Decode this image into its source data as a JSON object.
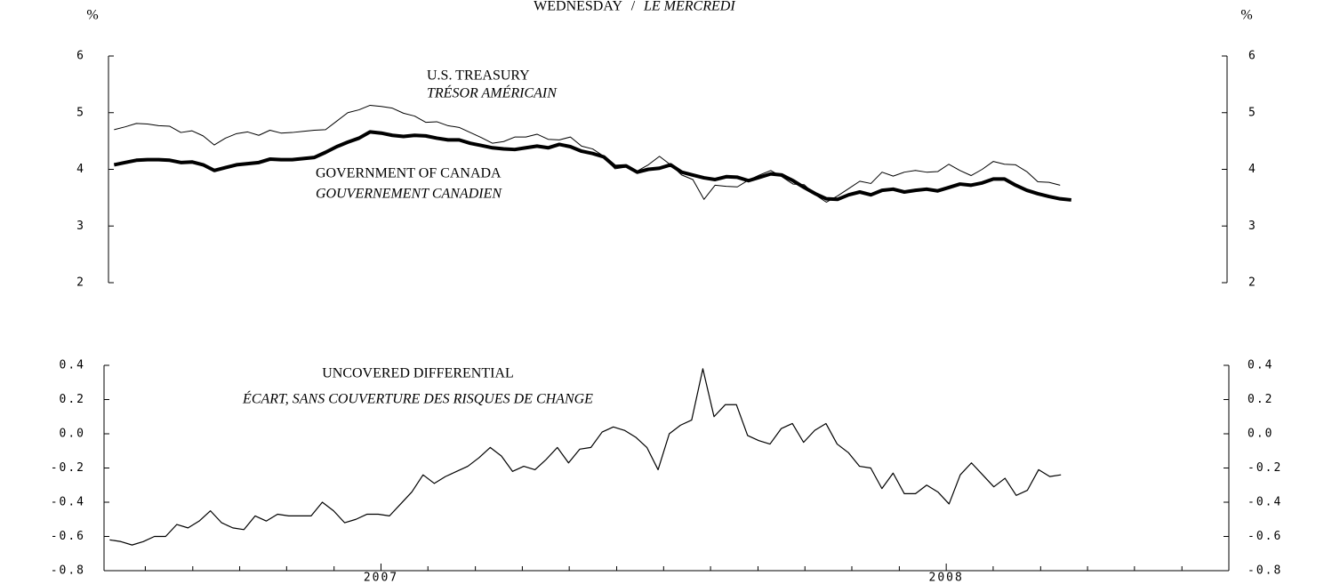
{
  "header": {
    "title": "WEDNESDAY",
    "title_separator": "/",
    "title_fr": "LE MERCREDI",
    "unit": "%"
  },
  "chart_data": [
    {
      "type": "line",
      "x": [
        2006.52,
        2006.5398,
        2006.5596,
        2006.5794,
        2006.5992,
        2006.619,
        2006.6388,
        2006.6586,
        2006.6784,
        2006.6982,
        2006.718,
        2006.7378,
        2006.7576,
        2006.7774,
        2006.7972,
        2006.817,
        2006.8368,
        2006.8566,
        2006.8764,
        2006.8962,
        2006.916,
        2006.9358,
        2006.9556,
        2006.9754,
        2006.9952,
        2007.015,
        2007.0348,
        2007.0546,
        2007.0744,
        2007.0942,
        2007.114,
        2007.1338,
        2007.1536,
        2007.1734,
        2007.1932,
        2007.213,
        2007.2328,
        2007.2526,
        2007.2724,
        2007.2922,
        2007.312,
        2007.3318,
        2007.3516,
        2007.3714,
        2007.3912,
        2007.411,
        2007.4308,
        2007.4506,
        2007.4704,
        2007.4902,
        2007.51,
        2007.5298,
        2007.5496,
        2007.5694,
        2007.5892,
        2007.609,
        2007.6288,
        2007.6486,
        2007.6684,
        2007.6882,
        2007.708,
        2007.7278,
        2007.7476,
        2007.7674,
        2007.7872,
        2007.807,
        2007.8268,
        2007.8466,
        2007.8664,
        2007.8862,
        2007.906,
        2007.9258,
        2007.9456,
        2007.9654,
        2007.9852,
        2008.005,
        2008.0248,
        2008.0446,
        2008.0644,
        2008.0842,
        2008.104,
        2008.1238,
        2008.1436,
        2008.1634,
        2008.1832,
        2008.203,
        2008.2228
      ],
      "xlim": [
        2006.51,
        2008.5
      ],
      "ylim": [
        2,
        6
      ],
      "yticks": [
        2,
        3,
        4,
        5,
        6
      ],
      "y2lim": [
        2,
        6
      ],
      "y2ticks": [
        2,
        3,
        4,
        5,
        6
      ],
      "series": [
        {
          "name": "U.S. TREASURY",
          "name_fr": "TRÉSOR AMÉRICAIN",
          "color": "#000000",
          "values": [
            4.7,
            4.75,
            4.81,
            4.8,
            4.77,
            4.76,
            4.65,
            4.68,
            4.59,
            4.43,
            4.55,
            4.63,
            4.66,
            4.6,
            4.69,
            4.64,
            4.65,
            4.67,
            4.69,
            4.7,
            4.85,
            5.0,
            5.05,
            5.13,
            5.11,
            5.08,
            4.99,
            4.94,
            4.83,
            4.84,
            4.77,
            4.74,
            4.65,
            4.56,
            4.46,
            4.49,
            4.57,
            4.57,
            4.62,
            4.53,
            4.52,
            4.57,
            4.41,
            4.36,
            4.23,
            4.01,
            4.04,
            3.97,
            4.08,
            4.23,
            4.08,
            3.9,
            3.82,
            3.47,
            3.72,
            3.7,
            3.69,
            3.81,
            3.9,
            3.98,
            3.87,
            3.74,
            3.73,
            3.55,
            3.42,
            3.53,
            3.66,
            3.79,
            3.75,
            3.95,
            3.88,
            3.95,
            3.98,
            3.95,
            3.96,
            4.09,
            3.98,
            3.89,
            4.0,
            4.14,
            4.09,
            4.08,
            3.96,
            3.78,
            3.77,
            3.72,
            null
          ]
        },
        {
          "name": "GOVERNMENT OF CANADA",
          "name_fr": "GOUVERNEMENT CANADIEN",
          "color": "#000000",
          "values": [
            4.08,
            4.12,
            4.16,
            4.17,
            4.17,
            4.16,
            4.12,
            4.13,
            4.08,
            3.98,
            4.03,
            4.08,
            4.1,
            4.12,
            4.18,
            4.17,
            4.17,
            4.19,
            4.21,
            4.3,
            4.4,
            4.48,
            4.55,
            4.66,
            4.64,
            4.6,
            4.58,
            4.6,
            4.59,
            4.55,
            4.52,
            4.52,
            4.46,
            4.42,
            4.38,
            4.36,
            4.35,
            4.38,
            4.41,
            4.38,
            4.44,
            4.4,
            4.32,
            4.28,
            4.22,
            4.05,
            4.06,
            3.95,
            4.0,
            4.02,
            4.08,
            3.95,
            3.9,
            3.85,
            3.82,
            3.87,
            3.86,
            3.8,
            3.86,
            3.92,
            3.9,
            3.8,
            3.68,
            3.57,
            3.48,
            3.47,
            3.55,
            3.6,
            3.55,
            3.63,
            3.65,
            3.6,
            3.63,
            3.65,
            3.62,
            3.68,
            3.74,
            3.72,
            3.76,
            3.83,
            3.83,
            3.72,
            3.63,
            3.57,
            3.52,
            3.48,
            3.46
          ]
        }
      ]
    },
    {
      "type": "line",
      "x": [
        2006.52,
        2006.5398,
        2006.5596,
        2006.5794,
        2006.5992,
        2006.619,
        2006.6388,
        2006.6586,
        2006.6784,
        2006.6982,
        2006.718,
        2006.7378,
        2006.7576,
        2006.7774,
        2006.7972,
        2006.817,
        2006.8368,
        2006.8566,
        2006.8764,
        2006.8962,
        2006.916,
        2006.9358,
        2006.9556,
        2006.9754,
        2006.9952,
        2007.015,
        2007.0348,
        2007.0546,
        2007.0744,
        2007.0942,
        2007.114,
        2007.1338,
        2007.1536,
        2007.1734,
        2007.1932,
        2007.213,
        2007.2328,
        2007.2526,
        2007.2724,
        2007.2922,
        2007.312,
        2007.3318,
        2007.3516,
        2007.3714,
        2007.3912,
        2007.411,
        2007.4308,
        2007.4506,
        2007.4704,
        2007.4902,
        2007.51,
        2007.5298,
        2007.5496,
        2007.5694,
        2007.5892,
        2007.609,
        2007.6288,
        2007.6486,
        2007.6684,
        2007.6882,
        2007.708,
        2007.7278,
        2007.7476,
        2007.7674,
        2007.7872,
        2007.807,
        2007.8268,
        2007.8466,
        2007.8664,
        2007.8862,
        2007.906,
        2007.9258,
        2007.9456,
        2007.9654,
        2007.9852,
        2008.005,
        2008.0248,
        2008.0446,
        2008.0644,
        2008.0842,
        2008.104,
        2008.1238,
        2008.1436,
        2008.1634,
        2008.1832,
        2008.203
      ],
      "xlim": [
        2006.51,
        2008.5
      ],
      "xticks": [
        2007,
        2008
      ],
      "xminorticks": [
        2006.583,
        2006.667,
        2006.75,
        2006.833,
        2006.917,
        2007.083,
        2007.167,
        2007.25,
        2007.333,
        2007.417,
        2007.5,
        2007.583,
        2007.667,
        2007.75,
        2007.833,
        2007.917,
        2008.083,
        2008.167,
        2008.25,
        2008.333,
        2008.417
      ],
      "ylim": [
        -0.8,
        0.4
      ],
      "yticks": [
        -0.8,
        -0.6,
        -0.4,
        -0.2,
        {
          "value": 0,
          "label": "0.0"
        },
        0.2,
        0.4
      ],
      "y2lim": [
        -0.8,
        0.4
      ],
      "y2ticks": [
        -0.8,
        -0.6,
        -0.4,
        -0.2,
        {
          "value": 0,
          "label": "0.0"
        },
        0.2,
        0.4
      ],
      "series": [
        {
          "name": "UNCOVERED DIFFERENTIAL",
          "name_fr": "ÉCART, SANS COUVERTURE DES RISQUES DE CHANGE",
          "color": "#000000",
          "values": [
            -0.62,
            -0.63,
            -0.65,
            -0.63,
            -0.6,
            -0.6,
            -0.53,
            -0.55,
            -0.51,
            -0.45,
            -0.52,
            -0.55,
            -0.56,
            -0.48,
            -0.51,
            -0.47,
            -0.48,
            -0.48,
            -0.48,
            -0.4,
            -0.45,
            -0.52,
            -0.5,
            -0.47,
            -0.47,
            -0.48,
            -0.41,
            -0.34,
            -0.24,
            -0.29,
            -0.25,
            -0.22,
            -0.19,
            -0.14,
            -0.08,
            -0.13,
            -0.22,
            -0.19,
            -0.21,
            -0.15,
            -0.08,
            -0.17,
            -0.09,
            -0.08,
            0.01,
            0.04,
            0.02,
            -0.02,
            -0.08,
            -0.21,
            0.0,
            0.05,
            0.08,
            0.38,
            0.1,
            0.17,
            0.17,
            -0.01,
            -0.04,
            -0.06,
            0.03,
            0.06,
            -0.05,
            0.02,
            0.06,
            -0.06,
            -0.11,
            -0.19,
            -0.2,
            -0.32,
            -0.23,
            -0.35,
            -0.35,
            -0.3,
            -0.34,
            -0.41,
            -0.24,
            -0.17,
            -0.24,
            -0.31,
            -0.26,
            -0.36,
            -0.33,
            -0.21,
            -0.25,
            -0.24
          ]
        }
      ]
    }
  ]
}
